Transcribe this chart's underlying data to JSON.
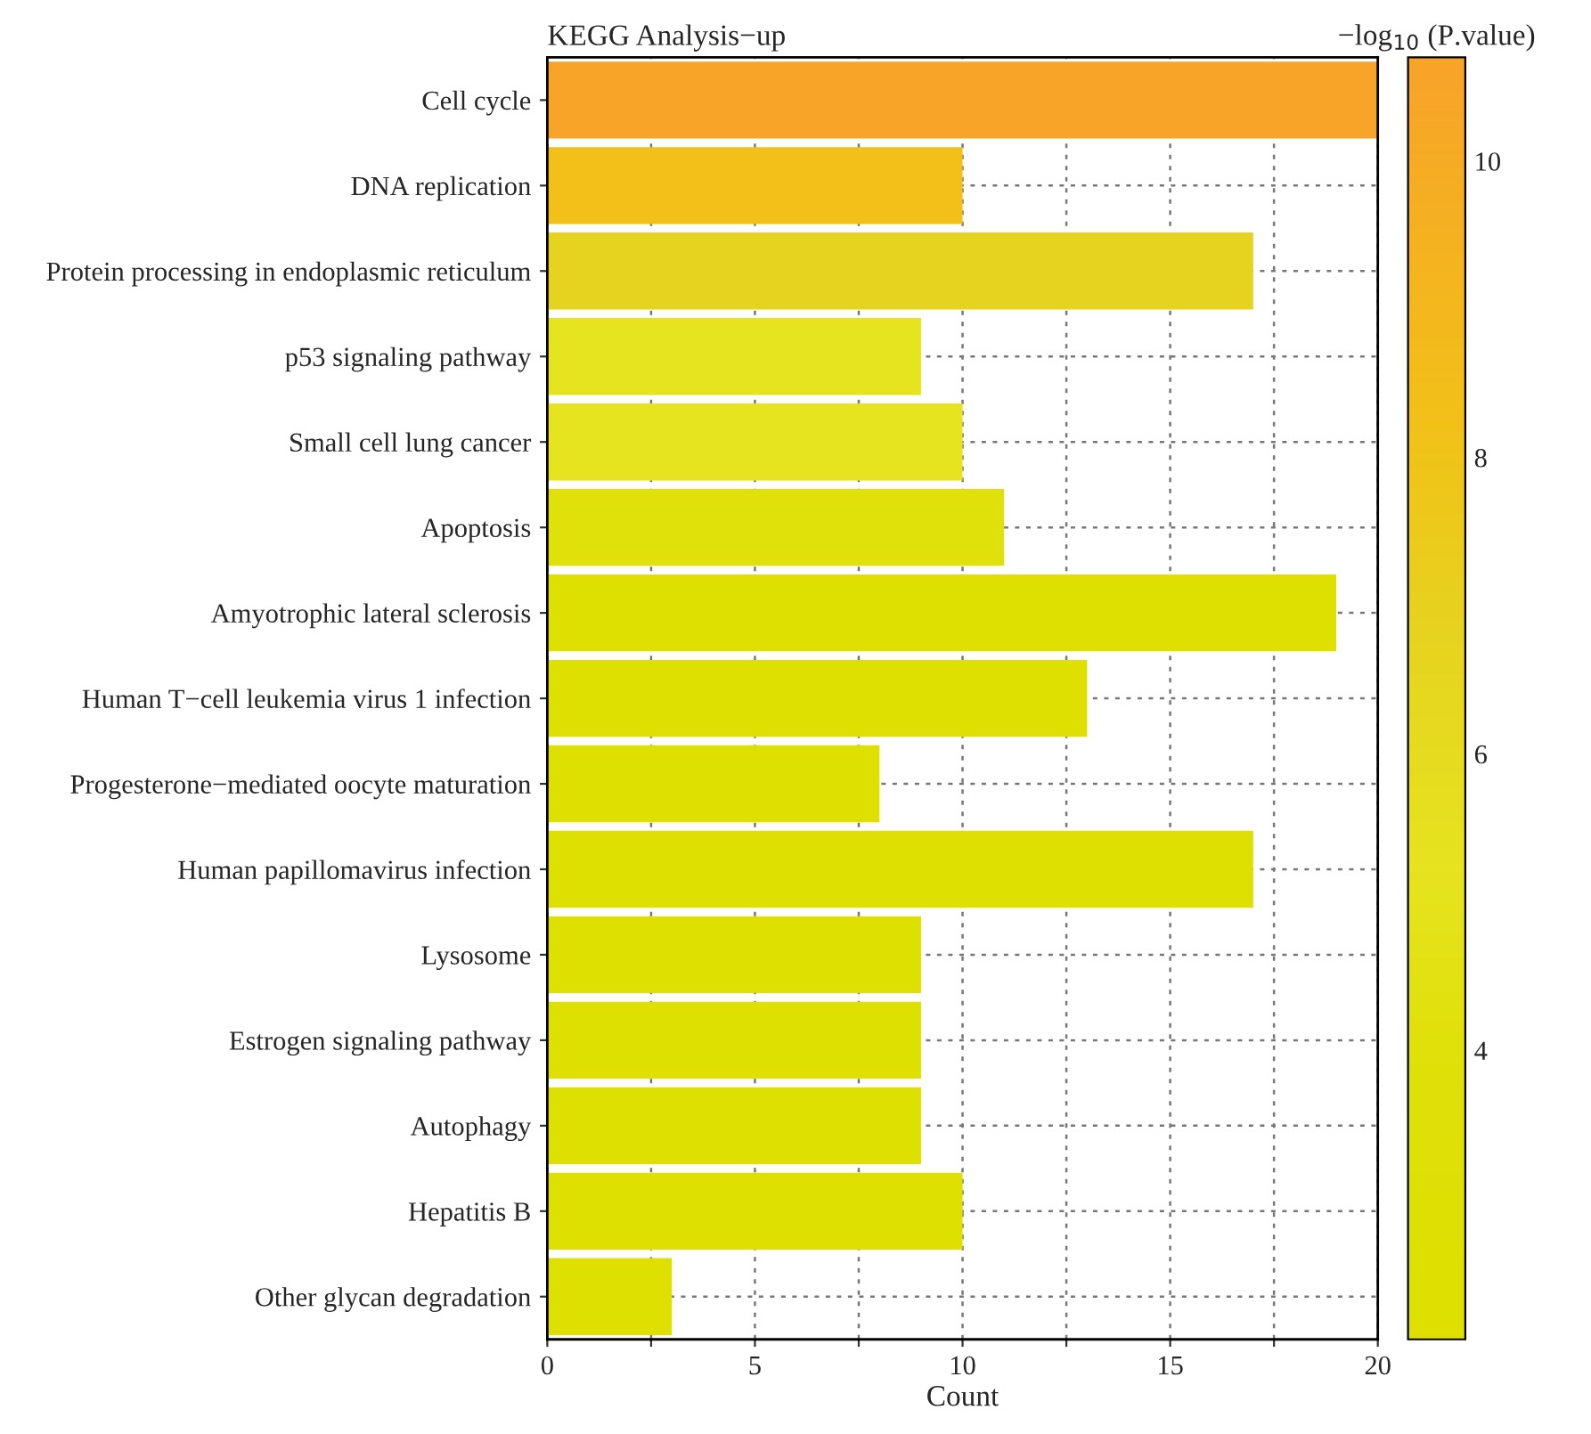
{
  "chart_data": {
    "type": "bar",
    "orientation": "horizontal",
    "title": "KEGG Analysis−up",
    "xlabel": "Count",
    "clabel": "−log$_{10}$ (P.value)",
    "categories": [
      "Cell cycle",
      "DNA replication",
      "Protein processing in endoplasmic reticulum",
      "p53 signaling pathway",
      "Small cell lung cancer",
      "Apoptosis",
      "Amyotrophic lateral sclerosis",
      "Human T−cell leukemia virus 1 infection",
      "Progesterone−mediated oocyte maturation",
      "Human papillomavirus infection",
      "Lysosome",
      "Estrogen signaling pathway",
      "Autophagy",
      "Hepatitis B",
      "Other glycan degradation"
    ],
    "values": [
      20,
      10,
      17,
      9,
      10,
      11,
      19,
      13,
      8,
      17,
      9,
      9,
      9,
      10,
      3
    ],
    "cvalues": [
      10.6,
      8.3,
      6.8,
      5.2,
      5.2,
      4.0,
      2.3,
      2.3,
      2.3,
      2.3,
      2.3,
      2.3,
      2.3,
      2.3,
      2.3
    ],
    "colors": [
      "#f7a428",
      "#f2c018",
      "#e6d31f",
      "#e6e31f",
      "#e6e31f",
      "#e0e00a",
      "#dde000",
      "#dde000",
      "#dde000",
      "#dde000",
      "#dde000",
      "#dde000",
      "#dde000",
      "#dde000",
      "#dde000"
    ],
    "clim": [
      2.05,
      10.7
    ],
    "cticks": [
      4,
      6,
      8,
      10
    ],
    "xlim": [
      0,
      20
    ],
    "xticks": [
      0,
      {
        "value": 2.5,
        "label": null
      },
      5,
      {
        "value": 7.5,
        "label": null
      },
      10,
      {
        "value": 12.5,
        "label": null
      },
      15,
      {
        "value": 17.5,
        "label": null
      },
      20
    ],
    "grid": true,
    "legend": false
  }
}
